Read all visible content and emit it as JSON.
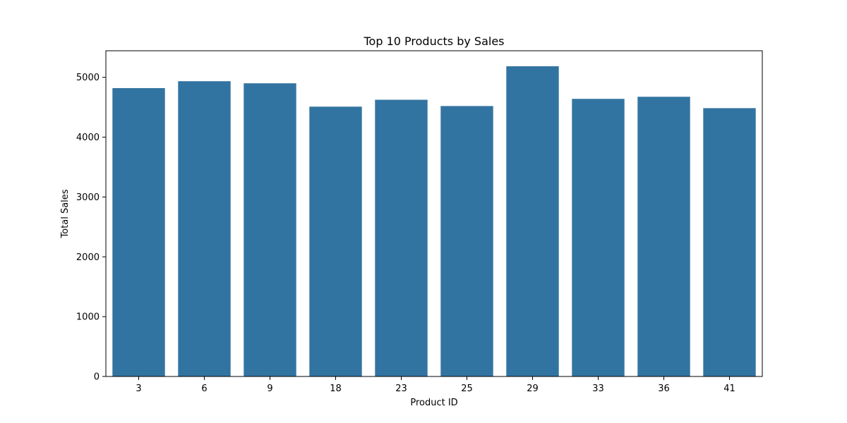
{
  "chart_data": {
    "type": "bar",
    "title": "Top 10 Products by Sales",
    "xlabel": "Product ID",
    "ylabel": "Total Sales",
    "categories": [
      "3",
      "6",
      "9",
      "18",
      "23",
      "25",
      "29",
      "33",
      "36",
      "41"
    ],
    "values": [
      4820,
      4935,
      4900,
      4510,
      4625,
      4520,
      5185,
      4640,
      4675,
      4485
    ],
    "ylim": [
      0,
      5444
    ],
    "yticks": [
      0,
      1000,
      2000,
      3000,
      4000,
      5000
    ],
    "grid": false,
    "bar_color": "#3274a1"
  }
}
